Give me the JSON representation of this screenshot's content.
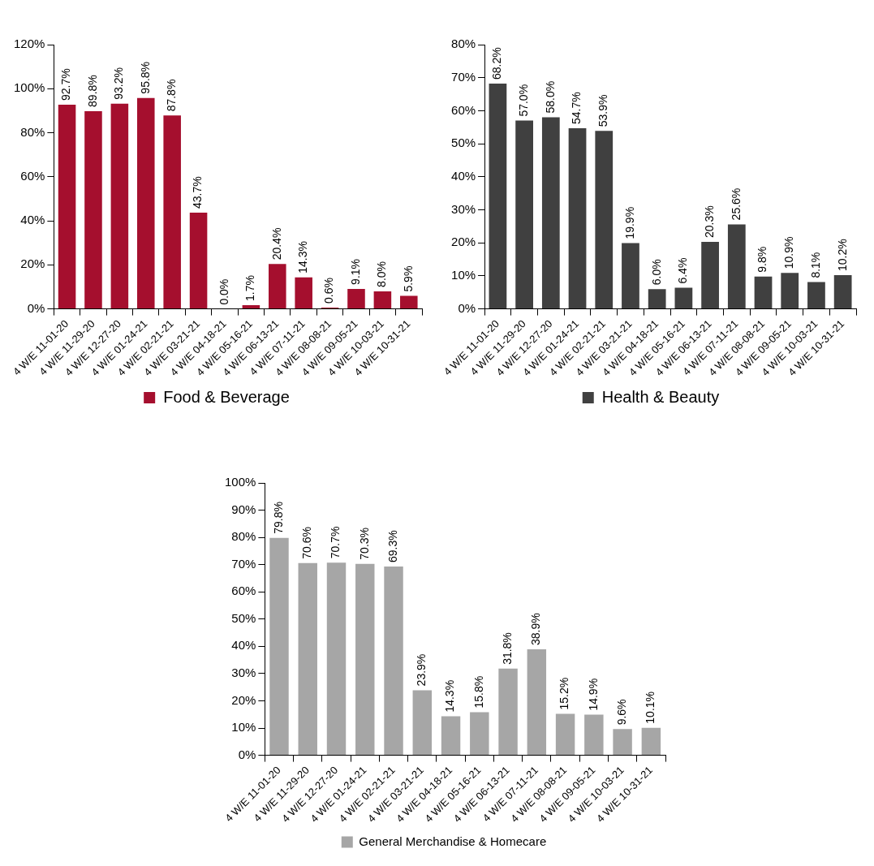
{
  "chart_data": [
    {
      "type": "bar",
      "categories": [
        "4 W/E 11-01-20",
        "4 W/E 11-29-20",
        "4 W/E 12-27-20",
        "4 W/E 01-24-21",
        "4 W/E 02-21-21",
        "4 W/E 03-21-21",
        "4 W/E 04-18-21",
        "4 W/E 05-16-21",
        "4 W/E 06-13-21",
        "4 W/E 07-11-21",
        "4 W/E 08-08-21",
        "4 W/E 09-05-21",
        "4 W/E 10-03-21",
        "4 W/E 10-31-21"
      ],
      "series": [
        {
          "name": "Food & Beverage",
          "color": "#a50f2e",
          "values": [
            92.7,
            89.8,
            93.2,
            95.8,
            87.8,
            43.7,
            0.0,
            1.7,
            20.4,
            14.3,
            0.6,
            9.1,
            8.0,
            5.9
          ],
          "value_labels": [
            "92.7%",
            "89.8%",
            "93.2%",
            "95.8%",
            "87.8%",
            "43.7%",
            "0.0%",
            "1.7%",
            "20.4%",
            "14.3%",
            "0.6%",
            "9.1%",
            "8.0%",
            "5.9%"
          ]
        }
      ],
      "ylim": [
        0,
        120
      ],
      "yticks": [
        {
          "value": 0,
          "label": "0%"
        },
        {
          "value": 20,
          "label": "20%"
        },
        {
          "value": 40,
          "label": "40%"
        },
        {
          "value": 60,
          "label": "60%"
        },
        {
          "value": 80,
          "label": "80%"
        },
        {
          "value": 100,
          "label": "100%"
        },
        {
          "value": 120,
          "label": "120%"
        }
      ],
      "grid": false,
      "legend": "bottom",
      "data_labels": true
    },
    {
      "type": "bar",
      "categories": [
        "4 W/E 11-01-20",
        "4 W/E 11-29-20",
        "4 W/E 12-27-20",
        "4 W/E 01-24-21",
        "4 W/E 02-21-21",
        "4 W/E 03-21-21",
        "4 W/E 04-18-21",
        "4 W/E 05-16-21",
        "4 W/E 06-13-21",
        "4 W/E 07-11-21",
        "4 W/E 08-08-21",
        "4 W/E 09-05-21",
        "4 W/E 10-03-21",
        "4 W/E 10-31-21"
      ],
      "series": [
        {
          "name": "Health & Beauty",
          "color": "#404040",
          "values": [
            68.2,
            57.0,
            58.0,
            54.7,
            53.9,
            19.9,
            6.0,
            6.4,
            20.3,
            25.6,
            9.8,
            10.9,
            8.1,
            10.2
          ],
          "value_labels": [
            "68.2%",
            "57.0%",
            "58.0%",
            "54.7%",
            "53.9%",
            "19.9%",
            "6.0%",
            "6.4%",
            "20.3%",
            "25.6%",
            "9.8%",
            "10.9%",
            "8.1%",
            "10.2%"
          ]
        }
      ],
      "ylim": [
        0,
        80
      ],
      "yticks": [
        {
          "value": 0,
          "label": "0%"
        },
        {
          "value": 10,
          "label": "10%"
        },
        {
          "value": 20,
          "label": "20%"
        },
        {
          "value": 30,
          "label": "30%"
        },
        {
          "value": 40,
          "label": "40%"
        },
        {
          "value": 50,
          "label": "50%"
        },
        {
          "value": 60,
          "label": "60%"
        },
        {
          "value": 70,
          "label": "70%"
        },
        {
          "value": 80,
          "label": "80%"
        }
      ],
      "grid": false,
      "legend": "bottom",
      "data_labels": true
    },
    {
      "type": "bar",
      "categories": [
        "4 W/E 11-01-20",
        "4 W/E 11-29-20",
        "4 W/E 12-27-20",
        "4 W/E 01-24-21",
        "4 W/E 02-21-21",
        "4 W/E 03-21-21",
        "4 W/E 04-18-21",
        "4 W/E 05-16-21",
        "4 W/E 06-13-21",
        "4 W/E 07-11-21",
        "4 W/E 08-08-21",
        "4 W/E 09-05-21",
        "4 W/E 10-03-21",
        "4 W/E 10-31-21"
      ],
      "series": [
        {
          "name": "General Merchandise & Homecare",
          "color": "#a6a6a6",
          "values": [
            79.8,
            70.6,
            70.7,
            70.3,
            69.3,
            23.9,
            14.3,
            15.8,
            31.8,
            38.9,
            15.2,
            14.9,
            9.6,
            10.1
          ],
          "value_labels": [
            "79.8%",
            "70.6%",
            "70.7%",
            "70.3%",
            "69.3%",
            "23.9%",
            "14.3%",
            "15.8%",
            "31.8%",
            "38.9%",
            "15.2%",
            "14.9%",
            "9.6%",
            "10.1%"
          ]
        }
      ],
      "ylim": [
        0,
        100
      ],
      "yticks": [
        {
          "value": 0,
          "label": "0%"
        },
        {
          "value": 10,
          "label": "10%"
        },
        {
          "value": 20,
          "label": "20%"
        },
        {
          "value": 30,
          "label": "30%"
        },
        {
          "value": 40,
          "label": "40%"
        },
        {
          "value": 50,
          "label": "50%"
        },
        {
          "value": 60,
          "label": "60%"
        },
        {
          "value": 70,
          "label": "70%"
        },
        {
          "value": 80,
          "label": "80%"
        },
        {
          "value": 90,
          "label": "90%"
        },
        {
          "value": 100,
          "label": "100%"
        }
      ],
      "grid": false,
      "legend": "bottom",
      "data_labels": true
    }
  ]
}
